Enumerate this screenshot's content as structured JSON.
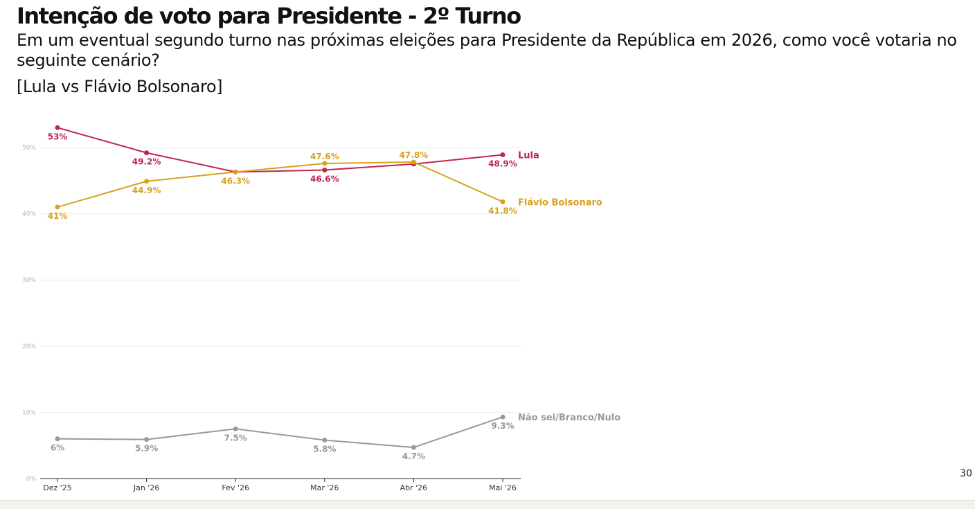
{
  "header": {
    "title": "Intenção de voto para Presidente - 2º Turno",
    "question": "Em um eventual segundo turno nas próximas eleições para Presidente da República em 2026, como você votaria no seguinte cenário?",
    "scenario": "[Lula vs Flávio Bolsonaro]"
  },
  "page_number": "30",
  "chart_data": {
    "type": "line",
    "x": [
      "Dez '25",
      "Jan '26",
      "Fev '26",
      "Mar '26",
      "Abr '26",
      "Mai '26"
    ],
    "ylim": [
      0,
      55
    ],
    "yticks": [
      0,
      10,
      20,
      30,
      40,
      50
    ],
    "ytick_labels": [
      "0%",
      "10%",
      "20%",
      "30%",
      "40%",
      "50%"
    ],
    "grid": true,
    "legend": "end-of-line labels",
    "series": [
      {
        "name": "Lula",
        "color": "#c0254f",
        "values": [
          53,
          49.2,
          46.3,
          46.6,
          47.5,
          48.9
        ],
        "labels": [
          "53%",
          "49.2%",
          "",
          "46.6%",
          "",
          "48.9%"
        ]
      },
      {
        "name": "Flávio Bolsonaro",
        "color": "#d6a21e",
        "values": [
          41,
          44.9,
          46.3,
          47.6,
          47.8,
          41.8
        ],
        "labels": [
          "41%",
          "44.9%",
          "46.3%",
          "47.6%",
          "47.8%",
          "41.8%"
        ]
      },
      {
        "name": "Não sei/Branco/Nulo",
        "color": "#999999",
        "values": [
          6,
          5.9,
          7.5,
          5.8,
          4.7,
          9.3
        ],
        "labels": [
          "6%",
          "5.9%",
          "7.5%",
          "5.8%",
          "4.7%",
          "9.3%"
        ]
      }
    ]
  }
}
